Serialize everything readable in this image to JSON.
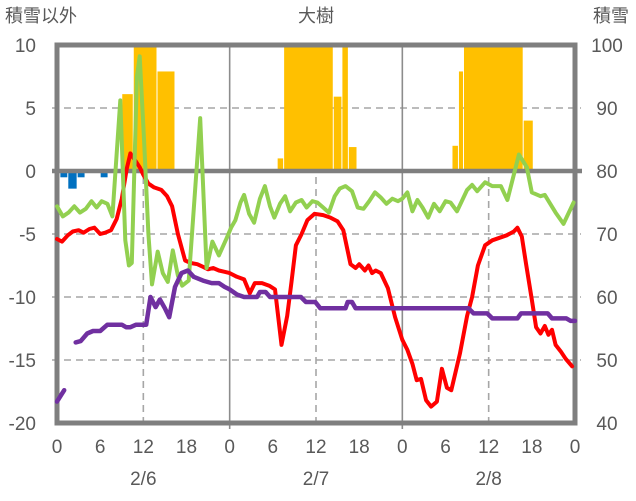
{
  "header": {
    "left_axis_title": "積雪以外",
    "station_title": "大樹",
    "right_axis_title": "積雪"
  },
  "colors": {
    "snow_bar": "#FFC000",
    "blue_bar": "#0070C0",
    "temperature_line": "#FF0000",
    "green_line": "#92D050",
    "snow_depth_line": "#7030A0",
    "frame": "#7F7F7F",
    "grid": "#A6A6A6",
    "day_line": "#8C8C8C",
    "label_text": "#595959"
  },
  "chart_data": {
    "type": "line",
    "title": "大樹",
    "axes": {
      "left": {
        "title": "積雪以外",
        "min": -20,
        "max": 10,
        "ticks": [
          "10",
          "5",
          "0",
          "-5",
          "-10",
          "-15",
          "-20"
        ],
        "dashed_gridlines": [
          5,
          -5,
          -10,
          -15
        ],
        "zero_line": 0
      },
      "right": {
        "title": "積雪",
        "min": 40,
        "max": 100,
        "ticks": [
          "100",
          "90",
          "80",
          "70",
          "60",
          "50",
          "40"
        ]
      },
      "x": {
        "start_hour": 0,
        "end_hour": 72,
        "tick_step_hours": 6,
        "tick_labels": [
          "0",
          "6",
          "12",
          "18",
          "0",
          "6",
          "12",
          "18",
          "0",
          "6",
          "12",
          "18",
          "0"
        ],
        "day_labels": [
          "2/6",
          "2/7",
          "2/8"
        ],
        "dashed_vlines_hours": [
          12,
          36,
          60
        ],
        "solid_vlines_hours": [
          24,
          48
        ]
      }
    },
    "series": [
      {
        "name": "snowfall-bars",
        "type": "bar",
        "axis": "left",
        "color": "#FFC000",
        "clipped_at_top_value": 10,
        "segments": [
          [
            9.0,
            10.6,
            6.1
          ],
          [
            10.6,
            13.9,
            10
          ],
          [
            13.9,
            16.4,
            7.9
          ],
          [
            30.6,
            31.5,
            1.0
          ],
          [
            31.5,
            38.4,
            10
          ],
          [
            38.4,
            39.6,
            5.9
          ],
          [
            39.6,
            40.5,
            10
          ],
          [
            40.5,
            41.7,
            1.9
          ],
          [
            54.9,
            55.8,
            2.0
          ],
          [
            55.8,
            56.5,
            7.9
          ],
          [
            56.5,
            64.8,
            10
          ],
          [
            64.8,
            66.2,
            4.0
          ]
        ]
      },
      {
        "name": "negative-bars",
        "type": "bar",
        "axis": "left",
        "color": "#0070C0",
        "segments": [
          [
            0.4,
            1.5,
            -0.5
          ],
          [
            1.5,
            2.8,
            -1.4
          ],
          [
            2.8,
            3.9,
            -0.5
          ],
          [
            6.0,
            7.1,
            -0.5
          ]
        ]
      },
      {
        "name": "temperature-line",
        "type": "line",
        "axis": "left",
        "color": "#FF0000",
        "width": 4,
        "paths": [
          [
            [
              0,
              -5.4
            ],
            [
              0.7,
              -5.6
            ],
            [
              1.5,
              -5.1
            ],
            [
              2.2,
              -4.8
            ],
            [
              3,
              -4.7
            ],
            [
              3.7,
              -4.9
            ],
            [
              4.5,
              -4.6
            ],
            [
              5.2,
              -4.5
            ],
            [
              6,
              -5.0
            ],
            [
              6.7,
              -4.9
            ],
            [
              7.5,
              -4.7
            ],
            [
              8.3,
              -3.8
            ],
            [
              9,
              -2.2
            ],
            [
              9.7,
              0.2
            ],
            [
              10.2,
              1.4
            ],
            [
              10.8,
              0.9
            ],
            [
              11.5,
              0.3
            ],
            [
              12,
              -0.3
            ],
            [
              12.7,
              -1.0
            ],
            [
              13.5,
              -1.3
            ],
            [
              14.5,
              -1.5
            ],
            [
              15.3,
              -2.0
            ],
            [
              16,
              -2.8
            ],
            [
              16.8,
              -5.0
            ],
            [
              17.8,
              -7.1
            ],
            [
              18.6,
              -7.3
            ],
            [
              19.5,
              -7.4
            ],
            [
              20.3,
              -7.6
            ],
            [
              21,
              -7.8
            ],
            [
              21.7,
              -7.7
            ],
            [
              22.5,
              -7.9
            ],
            [
              23.3,
              -8.0
            ],
            [
              24,
              -8.1
            ],
            [
              25,
              -8.4
            ],
            [
              26,
              -8.6
            ],
            [
              26.8,
              -9.7
            ],
            [
              27.5,
              -8.9
            ],
            [
              28.5,
              -8.9
            ],
            [
              29.5,
              -9.1
            ],
            [
              30.3,
              -9.4
            ],
            [
              31.2,
              -13.8
            ],
            [
              32,
              -11.5
            ],
            [
              32.6,
              -8.8
            ],
            [
              33.2,
              -5.9
            ],
            [
              34,
              -5.0
            ],
            [
              34.8,
              -3.9
            ],
            [
              35.8,
              -3.4
            ],
            [
              37,
              -3.5
            ],
            [
              38,
              -3.7
            ],
            [
              39,
              -4.0
            ],
            [
              39.8,
              -4.7
            ],
            [
              40.8,
              -7.4
            ],
            [
              41.5,
              -7.7
            ],
            [
              42,
              -7.4
            ],
            [
              42.8,
              -7.9
            ],
            [
              43.3,
              -7.5
            ],
            [
              43.8,
              -8.1
            ],
            [
              44.3,
              -7.9
            ],
            [
              45,
              -8.1
            ],
            [
              46,
              -9.3
            ],
            [
              47,
              -11.6
            ],
            [
              48,
              -13.4
            ],
            [
              48.7,
              -14.2
            ],
            [
              49.4,
              -15.3
            ],
            [
              50,
              -16.6
            ],
            [
              50.6,
              -16.5
            ],
            [
              51.3,
              -18.2
            ],
            [
              52,
              -18.7
            ],
            [
              52.8,
              -18.3
            ],
            [
              53.5,
              -15.7
            ],
            [
              54.2,
              -17.2
            ],
            [
              54.8,
              -17.4
            ],
            [
              56,
              -14.5
            ],
            [
              57,
              -11.5
            ],
            [
              57.7,
              -10.0
            ],
            [
              58.5,
              -7.5
            ],
            [
              59.5,
              -5.9
            ],
            [
              60.5,
              -5.5
            ],
            [
              61.5,
              -5.3
            ],
            [
              62.5,
              -5.1
            ],
            [
              63.5,
              -4.8
            ],
            [
              64,
              -4.5
            ],
            [
              64.6,
              -5.2
            ],
            [
              65.2,
              -7.4
            ],
            [
              66,
              -10.2
            ],
            [
              66.6,
              -12.4
            ],
            [
              67.2,
              -12.9
            ],
            [
              67.8,
              -12.3
            ],
            [
              68.3,
              -13.0
            ],
            [
              68.8,
              -12.6
            ],
            [
              69.3,
              -13.8
            ],
            [
              70,
              -14.3
            ],
            [
              70.7,
              -14.9
            ],
            [
              71.6,
              -15.5
            ]
          ]
        ]
      },
      {
        "name": "green-line",
        "type": "line",
        "axis": "left",
        "color": "#92D050",
        "width": 4,
        "paths": [
          [
            [
              0,
              -2.8
            ],
            [
              0.8,
              -3.6
            ],
            [
              1.6,
              -3.3
            ],
            [
              2.4,
              -2.8
            ],
            [
              3.2,
              -3.3
            ],
            [
              4,
              -3.0
            ],
            [
              4.8,
              -2.4
            ],
            [
              5.5,
              -2.9
            ],
            [
              6.2,
              -2.4
            ],
            [
              7,
              -2.6
            ],
            [
              7.7,
              -3.6
            ],
            [
              8.8,
              5.6
            ],
            [
              9.5,
              -5.5
            ],
            [
              10,
              -7.5
            ],
            [
              10.4,
              -7.3
            ],
            [
              11.1,
              7.5
            ],
            [
              11.5,
              9.1
            ],
            [
              12.1,
              2.4
            ],
            [
              12.7,
              -5.0
            ],
            [
              13.2,
              -9.0
            ],
            [
              14,
              -6.4
            ],
            [
              14.7,
              -8.1
            ],
            [
              15.4,
              -8.8
            ],
            [
              16.1,
              -6.3
            ],
            [
              16.8,
              -8.3
            ],
            [
              17.4,
              -9.1
            ],
            [
              18.3,
              -8.7
            ],
            [
              19.9,
              4.2
            ],
            [
              20.8,
              -7.7
            ],
            [
              21.6,
              -5.6
            ],
            [
              22.5,
              -6.7
            ],
            [
              23.6,
              -5.3
            ],
            [
              24.2,
              -4.5
            ],
            [
              24.8,
              -3.9
            ],
            [
              25.5,
              -2.5
            ],
            [
              26,
              -1.9
            ],
            [
              26.7,
              -3.4
            ],
            [
              27.4,
              -4.1
            ],
            [
              28.2,
              -2.2
            ],
            [
              28.9,
              -1.2
            ],
            [
              29.6,
              -2.8
            ],
            [
              30.2,
              -3.7
            ],
            [
              31,
              -2.6
            ],
            [
              31.7,
              -2.0
            ],
            [
              32.4,
              -3.2
            ],
            [
              33.2,
              -2.5
            ],
            [
              34,
              -2.3
            ],
            [
              34.7,
              -2.9
            ],
            [
              35.5,
              -2.4
            ],
            [
              36.2,
              -2.5
            ],
            [
              37,
              -2.9
            ],
            [
              37.8,
              -3.3
            ],
            [
              38.6,
              -2.0
            ],
            [
              39.3,
              -1.4
            ],
            [
              40.1,
              -1.2
            ],
            [
              41,
              -1.6
            ],
            [
              41.8,
              -2.9
            ],
            [
              42.6,
              -3.0
            ],
            [
              43.4,
              -2.4
            ],
            [
              44.2,
              -1.7
            ],
            [
              45,
              -2.1
            ],
            [
              45.8,
              -2.6
            ],
            [
              46.6,
              -2.2
            ],
            [
              47.4,
              -2.4
            ],
            [
              48,
              -2.2
            ],
            [
              48.7,
              -1.7
            ],
            [
              49.4,
              -3.2
            ],
            [
              50.1,
              -2.3
            ],
            [
              50.8,
              -2.9
            ],
            [
              51.6,
              -3.7
            ],
            [
              52.4,
              -2.6
            ],
            [
              53.2,
              -3.2
            ],
            [
              54,
              -2.4
            ],
            [
              54.7,
              -2.5
            ],
            [
              55.6,
              -3.2
            ],
            [
              57,
              -1.5
            ],
            [
              57.7,
              -1.1
            ],
            [
              58.4,
              -1.6
            ],
            [
              59.5,
              -0.9
            ],
            [
              60.5,
              -1.2
            ],
            [
              61.7,
              -1.2
            ],
            [
              62.6,
              -2.3
            ],
            [
              64.2,
              1.3
            ],
            [
              65.3,
              0.3
            ],
            [
              66,
              -1.7
            ],
            [
              67.2,
              -2.0
            ],
            [
              67.8,
              -1.9
            ],
            [
              69.3,
              -3.3
            ],
            [
              70.4,
              -4.2
            ],
            [
              71.8,
              -2.5
            ]
          ]
        ]
      },
      {
        "name": "snow-depth-line",
        "type": "line",
        "axis": "right",
        "color": "#7030A0",
        "width": 4.5,
        "paths": [
          [
            [
              0,
              43.4
            ],
            [
              1,
              45.2
            ]
          ],
          [
            [
              2.6,
              52.8
            ],
            [
              3.3,
              53.0
            ],
            [
              4.2,
              54.2
            ],
            [
              5,
              54.6
            ],
            [
              6,
              54.6
            ],
            [
              7,
              55.6
            ],
            [
              9,
              55.6
            ],
            [
              9.6,
              55.2
            ],
            [
              10.2,
              55.2
            ],
            [
              11,
              55.6
            ],
            [
              12.4,
              55.6
            ],
            [
              13,
              60.0
            ],
            [
              13.7,
              58.4
            ],
            [
              14.3,
              59.6
            ],
            [
              15,
              58.2
            ],
            [
              15.6,
              56.8
            ],
            [
              16.4,
              61.6
            ],
            [
              17.3,
              63.8
            ],
            [
              18.2,
              64.2
            ],
            [
              19,
              63.2
            ],
            [
              20.3,
              62.6
            ],
            [
              21.5,
              62.2
            ],
            [
              22.5,
              62.2
            ],
            [
              23.3,
              61.6
            ],
            [
              24,
              61.2
            ],
            [
              25,
              60.4
            ],
            [
              26,
              60.0
            ],
            [
              27.8,
              60.0
            ],
            [
              28.2,
              60.8
            ],
            [
              29,
              60.8
            ],
            [
              29.6,
              60.0
            ],
            [
              33.9,
              60.0
            ],
            [
              34.6,
              59.2
            ],
            [
              35.9,
              59.2
            ],
            [
              36.6,
              58.2
            ],
            [
              40.1,
              58.2
            ],
            [
              40.4,
              59.2
            ],
            [
              41,
              59.2
            ],
            [
              41.5,
              58.2
            ],
            [
              57.2,
              58.2
            ],
            [
              57.9,
              57.4
            ],
            [
              59.8,
              57.4
            ],
            [
              60.5,
              56.6
            ],
            [
              64,
              56.6
            ],
            [
              64.5,
              57.4
            ],
            [
              68.2,
              57.4
            ],
            [
              68.8,
              56.6
            ],
            [
              70.8,
              56.6
            ],
            [
              71.4,
              56.2
            ],
            [
              72,
              56.2
            ]
          ]
        ]
      }
    ]
  }
}
